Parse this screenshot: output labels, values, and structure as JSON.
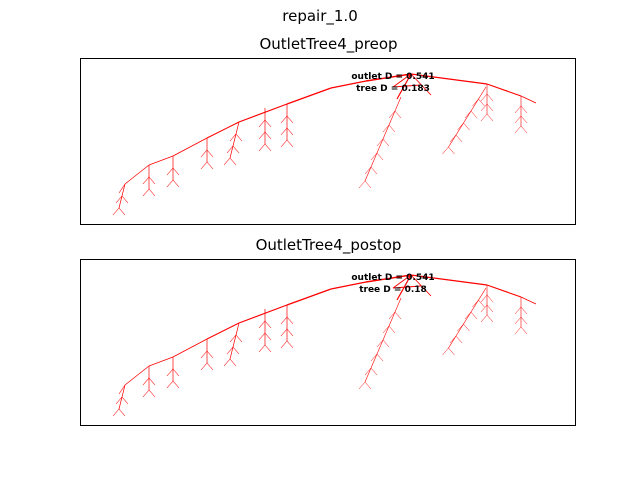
{
  "figure_title": "repair_1.0",
  "line_color": "#ff0000",
  "panels": [
    {
      "title": "OutletTree4_preop",
      "outlet_label": "outlet D = 0.541",
      "tree_label": "tree D = 0.183"
    },
    {
      "title": "OutletTree4_postop",
      "outlet_label": "outlet D = 0.541",
      "tree_label": "tree D = 0.18"
    }
  ]
}
